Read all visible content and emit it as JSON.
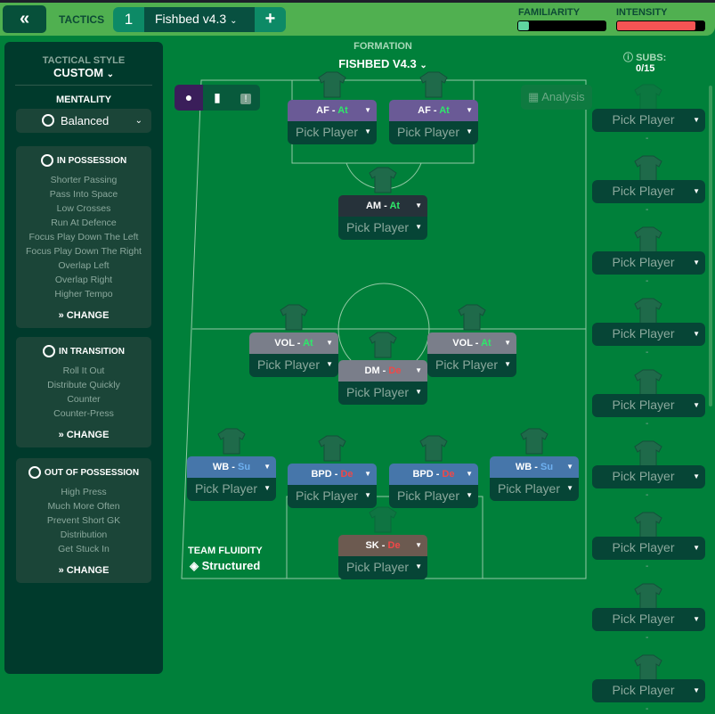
{
  "header": {
    "back_icon": "double-chevron-left-icon",
    "section": "Tactics",
    "slot": "1",
    "tactic_name": "Fishbed v4.3",
    "add": "+",
    "familiarity": {
      "label": "FAMILIARITY",
      "value_percent": 12,
      "color": "#5fd4a0"
    },
    "intensity": {
      "label": "INTENSITY",
      "value_percent": 90,
      "color": "#f55454"
    }
  },
  "left": {
    "style_label": "TACTICAL STYLE",
    "style_value": "CUSTOM",
    "mentality_label": "MENTALITY",
    "mentality_value": "Balanced",
    "sections": [
      {
        "title": "IN POSSESSION",
        "items": [
          "Shorter Passing",
          "Pass Into Space",
          "Low Crosses",
          "Run At Defence",
          "Focus Play Down The Left",
          "Focus Play Down The Right",
          "Overlap Left",
          "Overlap Right",
          "Higher Tempo"
        ],
        "change": "CHANGE"
      },
      {
        "title": "IN TRANSITION",
        "items": [
          "Roll It Out",
          "Distribute Quickly",
          "Counter",
          "Counter-Press"
        ],
        "change": "CHANGE"
      },
      {
        "title": "OUT OF POSSESSION",
        "items": [
          "High Press",
          "Much More Often",
          "Prevent Short GK",
          "Distribution",
          "Get Stuck In"
        ],
        "change": "CHANGE"
      }
    ]
  },
  "formation": {
    "label": "FORMATION",
    "value": "FISHBED V4.3",
    "analysis": "Analysis",
    "fluidity_label": "TEAM FLUIDITY",
    "fluidity_value": "Structured"
  },
  "duty_colors": {
    "At": "#2ee86a",
    "De": "#f04848",
    "Su": "#6eb0f0"
  },
  "players": [
    {
      "role": "AF",
      "duty": "At",
      "pick": "Pick Player",
      "color": "#6a5a96"
    },
    {
      "role": "AF",
      "duty": "At",
      "pick": "Pick Player",
      "color": "#6a5a96"
    },
    {
      "role": "AM",
      "duty": "At",
      "pick": "Pick Player",
      "color": "#26323a"
    },
    {
      "role": "VOL",
      "duty": "At",
      "pick": "Pick Player",
      "color": "#7a7e8a"
    },
    {
      "role": "VOL",
      "duty": "At",
      "pick": "Pick Player",
      "color": "#7a7e8a"
    },
    {
      "role": "DM",
      "duty": "De",
      "pick": "Pick Player",
      "color": "#7a7e8a"
    },
    {
      "role": "WB",
      "duty": "Su",
      "pick": "Pick Player",
      "color": "#4676aa"
    },
    {
      "role": "BPD",
      "duty": "De",
      "pick": "Pick Player",
      "color": "#4676aa"
    },
    {
      "role": "BPD",
      "duty": "De",
      "pick": "Pick Player",
      "color": "#4676aa"
    },
    {
      "role": "WB",
      "duty": "Su",
      "pick": "Pick Player",
      "color": "#4676aa"
    },
    {
      "role": "SK",
      "duty": "De",
      "pick": "Pick Player",
      "color": "#6c5a50"
    }
  ],
  "subs": {
    "label": "SUBS:",
    "count": "0/15",
    "items": [
      "Pick Player",
      "Pick Player",
      "Pick Player",
      "Pick Player",
      "Pick Player",
      "Pick Player",
      "Pick Player",
      "Pick Player",
      "Pick Player"
    ],
    "empty": "-"
  }
}
